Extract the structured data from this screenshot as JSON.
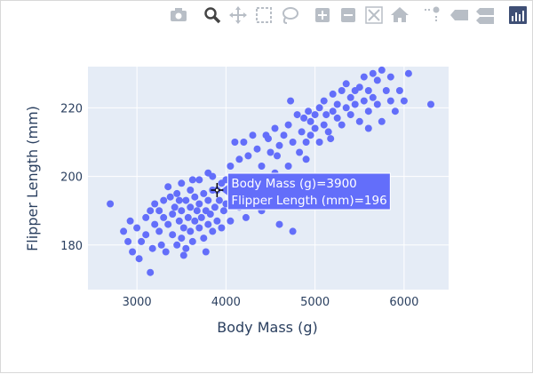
{
  "modebar": {
    "buttons": [
      {
        "name": "camera-icon",
        "x": 200
      },
      {
        "name": "zoom-icon",
        "x": 238
      },
      {
        "name": "pan-icon",
        "x": 267
      },
      {
        "name": "box-select-icon",
        "x": 296
      },
      {
        "name": "lasso-select-icon",
        "x": 325
      },
      {
        "name": "zoom-in-icon",
        "x": 362
      },
      {
        "name": "zoom-out-icon",
        "x": 391
      },
      {
        "name": "autoscale-icon",
        "x": 420
      },
      {
        "name": "reset-axes-icon",
        "x": 449
      },
      {
        "name": "spike-lines-icon",
        "x": 486
      },
      {
        "name": "hover-closest-icon",
        "x": 516
      },
      {
        "name": "hover-compare-icon",
        "x": 545
      },
      {
        "name": "plotly-logo-icon",
        "x": 582
      }
    ],
    "active": "zoom-icon"
  },
  "colors": {
    "plot_bg": "#e5ecf6",
    "grid": "#ffffff",
    "marker": "#636efa",
    "text": "#2a3f5f",
    "modebar_icon": "#b8bec6",
    "modebar_active": "#444444",
    "logo": "#3f4f75"
  },
  "hover": {
    "x_label": "Body Mass (g)=3900",
    "y_label": "Flipper Length (mm)=196",
    "x": 3900,
    "y": 196
  },
  "chart_data": {
    "type": "scatter",
    "xlabel": "Body Mass (g)",
    "ylabel": "Flipper Length (mm)",
    "xlim": [
      2450,
      6500
    ],
    "ylim": [
      167,
      232
    ],
    "xticks": [
      3000,
      4000,
      5000,
      6000
    ],
    "yticks": [
      180,
      200,
      220
    ],
    "xtick_labels": [
      "3000",
      "4000",
      "5000",
      "6000"
    ],
    "ytick_labels": [
      "180",
      "200",
      "220"
    ],
    "grid": true,
    "legend": "none",
    "points": [
      [
        2700,
        192
      ],
      [
        2850,
        184
      ],
      [
        2900,
        181
      ],
      [
        2925,
        187
      ],
      [
        2950,
        178
      ],
      [
        3000,
        185
      ],
      [
        3050,
        181
      ],
      [
        3100,
        188
      ],
      [
        3150,
        172
      ],
      [
        3150,
        190
      ],
      [
        3175,
        179
      ],
      [
        3200,
        186
      ],
      [
        3200,
        192
      ],
      [
        3250,
        184
      ],
      [
        3275,
        180
      ],
      [
        3300,
        188
      ],
      [
        3300,
        193
      ],
      [
        3325,
        178
      ],
      [
        3350,
        186
      ],
      [
        3350,
        197
      ],
      [
        3400,
        183
      ],
      [
        3400,
        189
      ],
      [
        3425,
        191
      ],
      [
        3450,
        180
      ],
      [
        3450,
        195
      ],
      [
        3475,
        187
      ],
      [
        3500,
        182
      ],
      [
        3500,
        190
      ],
      [
        3500,
        198
      ],
      [
        3525,
        185
      ],
      [
        3550,
        193
      ],
      [
        3550,
        179
      ],
      [
        3575,
        188
      ],
      [
        3600,
        184
      ],
      [
        3600,
        191
      ],
      [
        3600,
        196
      ],
      [
        3625,
        181
      ],
      [
        3650,
        187
      ],
      [
        3650,
        194
      ],
      [
        3675,
        190
      ],
      [
        3700,
        185
      ],
      [
        3700,
        192
      ],
      [
        3700,
        199
      ],
      [
        3725,
        188
      ],
      [
        3750,
        182
      ],
      [
        3750,
        195
      ],
      [
        3775,
        190
      ],
      [
        3800,
        186
      ],
      [
        3800,
        193
      ],
      [
        3800,
        201
      ],
      [
        3825,
        189
      ],
      [
        3850,
        184
      ],
      [
        3850,
        196
      ],
      [
        3875,
        191
      ],
      [
        3900,
        187
      ],
      [
        3900,
        196
      ],
      [
        3925,
        193
      ],
      [
        3950,
        198
      ],
      [
        3950,
        185
      ],
      [
        3975,
        190
      ],
      [
        4000,
        192
      ],
      [
        4000,
        199
      ],
      [
        4050,
        187
      ],
      [
        4050,
        203
      ],
      [
        4100,
        195
      ],
      [
        4100,
        210
      ],
      [
        4150,
        191
      ],
      [
        4150,
        205
      ],
      [
        4200,
        198
      ],
      [
        4200,
        210
      ],
      [
        4250,
        193
      ],
      [
        4250,
        206
      ],
      [
        4300,
        200
      ],
      [
        4300,
        212
      ],
      [
        4350,
        197
      ],
      [
        4350,
        208
      ],
      [
        4400,
        190
      ],
      [
        4400,
        203
      ],
      [
        4450,
        212
      ],
      [
        4500,
        196
      ],
      [
        4500,
        207
      ],
      [
        4550,
        201
      ],
      [
        4550,
        214
      ],
      [
        4600,
        186
      ],
      [
        4600,
        209
      ],
      [
        4650,
        198
      ],
      [
        4650,
        212
      ],
      [
        4700,
        203
      ],
      [
        4700,
        215
      ],
      [
        4750,
        184
      ],
      [
        4750,
        210
      ],
      [
        4800,
        195
      ],
      [
        4800,
        218
      ],
      [
        4850,
        200
      ],
      [
        4850,
        213
      ],
      [
        4875,
        217
      ],
      [
        4900,
        205
      ],
      [
        4900,
        210
      ],
      [
        4925,
        219
      ],
      [
        4950,
        212
      ],
      [
        4950,
        216
      ],
      [
        5000,
        214
      ],
      [
        5000,
        218
      ],
      [
        5050,
        210
      ],
      [
        5050,
        220
      ],
      [
        5100,
        215
      ],
      [
        5100,
        222
      ],
      [
        5150,
        213
      ],
      [
        5200,
        219
      ],
      [
        5200,
        224
      ],
      [
        5250,
        217
      ],
      [
        5250,
        221
      ],
      [
        5300,
        215
      ],
      [
        5300,
        225
      ],
      [
        5350,
        220
      ],
      [
        5400,
        218
      ],
      [
        5400,
        223
      ],
      [
        5450,
        221
      ],
      [
        5500,
        216
      ],
      [
        5500,
        226
      ],
      [
        5550,
        222
      ],
      [
        5550,
        229
      ],
      [
        5600,
        219
      ],
      [
        5600,
        225
      ],
      [
        5650,
        223
      ],
      [
        5650,
        230
      ],
      [
        5700,
        221
      ],
      [
        5700,
        228
      ],
      [
        5750,
        216
      ],
      [
        5800,
        225
      ],
      [
        5850,
        222
      ],
      [
        5850,
        229
      ],
      [
        5950,
        225
      ],
      [
        6000,
        222
      ],
      [
        6050,
        230
      ],
      [
        6300,
        221
      ],
      [
        3100,
        183
      ],
      [
        3250,
        190
      ],
      [
        3375,
        194
      ],
      [
        3525,
        177
      ],
      [
        3625,
        199
      ],
      [
        3775,
        178
      ],
      [
        4075,
        200
      ],
      [
        4225,
        188
      ],
      [
        4425,
        198
      ],
      [
        4575,
        206
      ],
      [
        4725,
        222
      ],
      [
        4825,
        207
      ],
      [
        5125,
        218
      ],
      [
        5350,
        227
      ],
      [
        5450,
        225
      ],
      [
        5600,
        214
      ],
      [
        5750,
        231
      ],
      [
        5900,
        219
      ],
      [
        5175,
        211
      ],
      [
        4475,
        211
      ],
      [
        4125,
        193
      ],
      [
        3850,
        200
      ],
      [
        3025,
        176
      ],
      [
        3475,
        193
      ]
    ]
  }
}
